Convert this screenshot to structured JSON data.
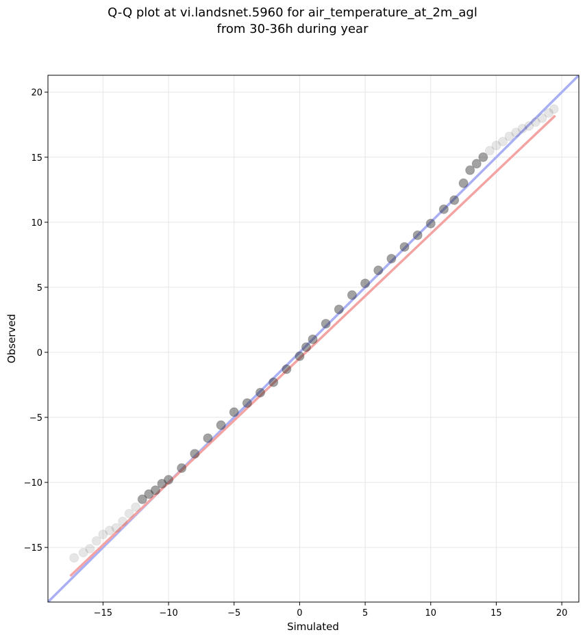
{
  "chart_data": {
    "type": "scatter",
    "title_line1": "Q-Q plot at vi.landsnet.5960 for air_temperature_at_2m_agl",
    "title_line2": "from 30-36h during year",
    "xlabel": "Simulated",
    "ylabel": "Observed",
    "xlim": [
      -19.2,
      21.3
    ],
    "ylim": [
      -19.2,
      21.3
    ],
    "xticks": [
      -15,
      -10,
      -5,
      0,
      5,
      10,
      15,
      20
    ],
    "yticks": [
      -15,
      -10,
      -5,
      0,
      5,
      10,
      15,
      20
    ],
    "xtick_labels": [
      "−15",
      "−10",
      "−5",
      "0",
      "5",
      "10",
      "15",
      "20"
    ],
    "ytick_labels": [
      "−15",
      "−10",
      "−5",
      "0",
      "5",
      "10",
      "15",
      "20"
    ],
    "grid": true,
    "quantiles": {
      "x": [
        -17.2,
        -16.5,
        -16.0,
        -15.5,
        -15.0,
        -14.5,
        -14.0,
        -13.5,
        -13.0,
        -12.5,
        -12.0,
        -11.5,
        -11.0,
        -10.5,
        -10.0,
        -9.0,
        -8.0,
        -7.0,
        -6.0,
        -5.0,
        -4.0,
        -3.0,
        -2.0,
        -1.0,
        0.0,
        0.5,
        1.0,
        2.0,
        3.0,
        4.0,
        5.0,
        6.0,
        7.0,
        8.0,
        9.0,
        10.0,
        11.0,
        11.8,
        12.5,
        13.0,
        13.5,
        14.0,
        14.5,
        15.0,
        15.5,
        16.0,
        16.5,
        17.0,
        17.5,
        18.0,
        18.5,
        19.0,
        19.4
      ],
      "y": [
        -15.8,
        -15.4,
        -15.1,
        -14.5,
        -14.0,
        -13.7,
        -13.5,
        -13.0,
        -12.4,
        -11.9,
        -11.3,
        -10.9,
        -10.6,
        -10.1,
        -9.8,
        -8.9,
        -7.8,
        -6.6,
        -5.6,
        -4.6,
        -3.9,
        -3.1,
        -2.3,
        -1.3,
        -0.3,
        0.4,
        1.0,
        2.2,
        3.3,
        4.4,
        5.3,
        6.3,
        7.2,
        8.1,
        9.0,
        9.9,
        11.0,
        11.7,
        13.0,
        14.0,
        14.5,
        15.0,
        15.5,
        15.9,
        16.2,
        16.6,
        16.9,
        17.2,
        17.4,
        17.7,
        18.0,
        18.4,
        18.7
      ]
    },
    "reference_lines": [
      {
        "kind": "one-to-one",
        "color": "#a8aff5",
        "x": [
          -19.2,
          21.3
        ],
        "y": [
          -19.2,
          21.3
        ]
      },
      {
        "kind": "fit",
        "color": "#f4a3a3",
        "x": [
          -17.5,
          19.5
        ],
        "y": [
          -17.2,
          18.2
        ]
      }
    ],
    "colors": {
      "points": "#303030",
      "one_to_one": "#a8aff5",
      "fit": "#f4a3a3",
      "grid": "#e6e6e6"
    }
  }
}
